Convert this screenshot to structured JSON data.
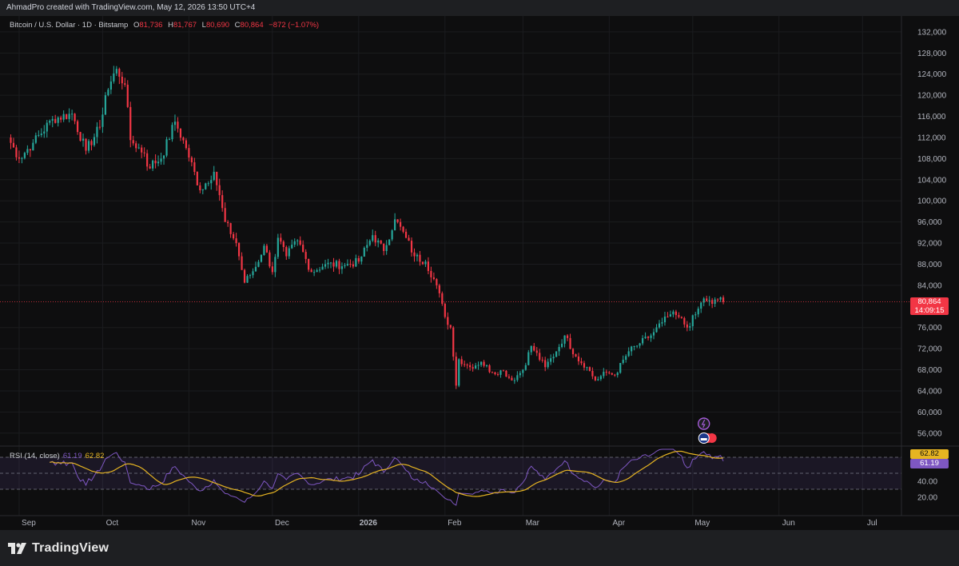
{
  "header": {
    "credit": "AhmadPro created with TradingView.com, May 12, 2026 13:50 UTC+4"
  },
  "symbol": {
    "name": "Bitcoin / U.S. Dollar · 1D · Bitstamp",
    "o_label": "O",
    "o": "81,736",
    "h_label": "H",
    "h": "81,767",
    "l_label": "L",
    "l": "80,690",
    "c_label": "C",
    "c": "80,864",
    "change": "−872 (−1.07%)"
  },
  "last_price": {
    "value": "80,864",
    "countdown": "14:09:15"
  },
  "rsi": {
    "label": "RSI (14, close)",
    "value": "61.19",
    "ma_value": "62.82",
    "axis_labels": [
      "40.00",
      "20.00"
    ]
  },
  "footer": {
    "brand": "TradingView"
  },
  "colors": {
    "up": "#26a69a",
    "down": "#f23645",
    "rsi": "#7e57c2",
    "rsi_ma": "#e6b422",
    "background": "#0e0e0f",
    "last_price_line": "#f23645"
  },
  "chart_data": {
    "type": "candlestick",
    "interval": "1D",
    "y_axis_labels": [
      "132,000",
      "128,000",
      "124,000",
      "120,000",
      "116,000",
      "112,000",
      "108,000",
      "104,000",
      "100,000",
      "96,000",
      "92,000",
      "88,000",
      "84,000",
      "76,000",
      "72,000",
      "68,000",
      "64,000",
      "60,000",
      "56,000"
    ],
    "x_axis_labels": [
      "Sep",
      "Oct",
      "Nov",
      "Dec",
      "2026",
      "Feb",
      "Mar",
      "Apr",
      "May",
      "Jun",
      "Jul"
    ],
    "price_range": [
      54000,
      133500
    ],
    "rsi_levels": [
      70,
      50,
      30
    ],
    "rsi_range": [
      10,
      80
    ],
    "anchors": [
      [
        "2025-08-28",
        112000
      ],
      [
        "2025-09-01",
        108000
      ],
      [
        "2025-09-06",
        111000
      ],
      [
        "2025-09-13",
        115500
      ],
      [
        "2025-09-20",
        116500
      ],
      [
        "2025-09-25",
        109500
      ],
      [
        "2025-09-30",
        114000
      ],
      [
        "2025-10-02",
        120000
      ],
      [
        "2025-10-06",
        125000
      ],
      [
        "2025-10-09",
        122000
      ],
      [
        "2025-10-11",
        111500
      ],
      [
        "2025-10-16",
        109000
      ],
      [
        "2025-10-17",
        106500
      ],
      [
        "2025-10-22",
        108000
      ],
      [
        "2025-10-27",
        115000
      ],
      [
        "2025-10-31",
        110000
      ],
      [
        "2025-11-05",
        102000
      ],
      [
        "2025-11-10",
        105500
      ],
      [
        "2025-11-14",
        96000
      ],
      [
        "2025-11-18",
        92000
      ],
      [
        "2025-11-21",
        84500
      ],
      [
        "2025-11-25",
        87500
      ],
      [
        "2025-11-28",
        91500
      ],
      [
        "2025-12-01",
        86500
      ],
      [
        "2025-12-03",
        93000
      ],
      [
        "2025-12-06",
        89500
      ],
      [
        "2025-12-10",
        92500
      ],
      [
        "2025-12-15",
        86500
      ],
      [
        "2025-12-20",
        88000
      ],
      [
        "2025-12-27",
        87800
      ],
      [
        "2026-01-01",
        88500
      ],
      [
        "2026-01-06",
        93500
      ],
      [
        "2026-01-10",
        90500
      ],
      [
        "2026-01-14",
        96500
      ],
      [
        "2026-01-18",
        93000
      ],
      [
        "2026-01-21",
        89500
      ],
      [
        "2026-01-25",
        88500
      ],
      [
        "2026-01-29",
        84000
      ],
      [
        "2026-02-01",
        78000
      ],
      [
        "2026-02-03",
        76000
      ],
      [
        "2026-02-05",
        65000
      ],
      [
        "2026-02-06",
        70000
      ],
      [
        "2026-02-10",
        68500
      ],
      [
        "2026-02-14",
        69500
      ],
      [
        "2026-02-18",
        67500
      ],
      [
        "2026-02-22",
        67800
      ],
      [
        "2026-02-25",
        66000
      ],
      [
        "2026-03-01",
        68000
      ],
      [
        "2026-03-04",
        72500
      ],
      [
        "2026-03-09",
        68500
      ],
      [
        "2026-03-13",
        71500
      ],
      [
        "2026-03-16",
        74500
      ],
      [
        "2026-03-20",
        70500
      ],
      [
        "2026-03-24",
        68500
      ],
      [
        "2026-03-27",
        66000
      ],
      [
        "2026-03-31",
        67500
      ],
      [
        "2026-04-03",
        67000
      ],
      [
        "2026-04-08",
        71500
      ],
      [
        "2026-04-12",
        73000
      ],
      [
        "2026-04-16",
        74500
      ],
      [
        "2026-04-20",
        77000
      ],
      [
        "2026-04-23",
        78500
      ],
      [
        "2026-04-26",
        78000
      ],
      [
        "2026-04-29",
        76000
      ],
      [
        "2026-05-02",
        78500
      ],
      [
        "2026-05-05",
        81500
      ],
      [
        "2026-05-08",
        80500
      ],
      [
        "2026-05-11",
        81700
      ],
      [
        "2026-05-12",
        80864
      ]
    ]
  }
}
